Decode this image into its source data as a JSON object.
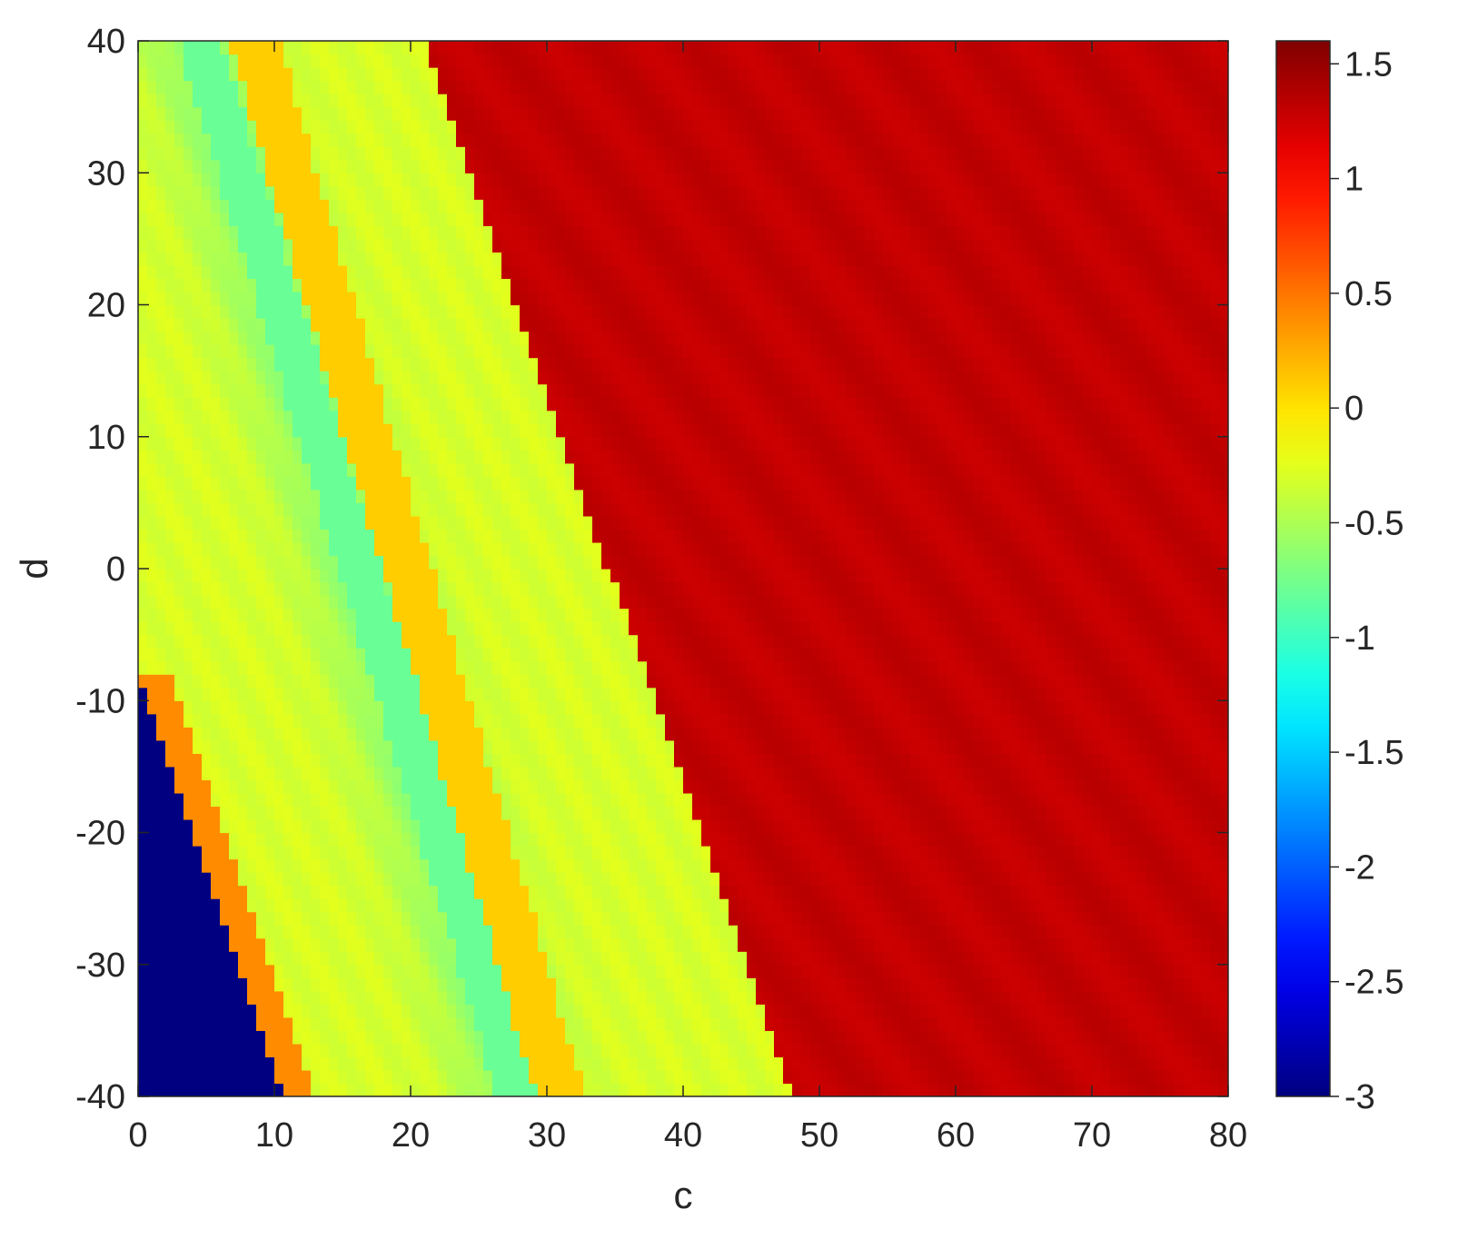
{
  "chart_data": {
    "type": "heatmap",
    "xlabel": "c",
    "ylabel": "d",
    "xlim": [
      0,
      80
    ],
    "ylim": [
      -40,
      40
    ],
    "xticks": [
      "0",
      "10",
      "20",
      "30",
      "40",
      "50",
      "60",
      "70",
      "80"
    ],
    "yticks": [
      "-40",
      "-30",
      "-20",
      "-10",
      "0",
      "10",
      "20",
      "30",
      "40"
    ],
    "grid": false,
    "colormap": "jet",
    "colorbar": {
      "range": [
        -3,
        1.6
      ],
      "ticks": [
        "-3",
        "-2.5",
        "-2",
        "-1.5",
        "-1",
        "-0.5",
        "0",
        "0.5",
        "1",
        "1.5"
      ],
      "tick_values": [
        -3,
        -2.5,
        -2,
        -1.5,
        -1,
        -0.5,
        0,
        0.5,
        1,
        1.5
      ]
    },
    "regions": [
      {
        "value": -3.0,
        "boundary_c_at_d_minus40": 10.5,
        "boundary_c_at_d_minus8": 0
      },
      {
        "value": 0.1,
        "band_center_c_at_d40": 8.5,
        "band_center_c_at_d_minus40": 31
      },
      {
        "value": -0.8,
        "band_center_c_at_d40": 4.5,
        "band_center_c_at_d_minus40": 28
      },
      {
        "value": 1.3,
        "boundary_c_at_d40": 21,
        "boundary_c_at_d_minus40": 48
      }
    ]
  }
}
